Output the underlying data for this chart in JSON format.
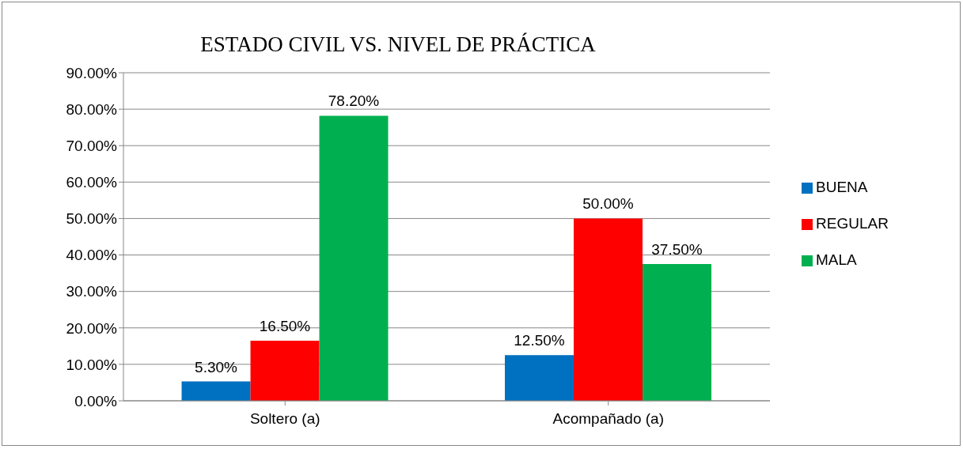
{
  "chart_data": {
    "type": "bar",
    "title": "ESTADO CIVIL VS. NIVEL DE PRÁCTICA",
    "categories": [
      "Soltero (a)",
      "Acompañado (a)"
    ],
    "series": [
      {
        "name": "BUENA",
        "color": "#0070c0",
        "values": [
          5.3,
          12.5
        ],
        "value_labels": [
          "5.30%",
          "12.50%"
        ]
      },
      {
        "name": "REGULAR",
        "color": "#ff0000",
        "values": [
          16.5,
          50
        ],
        "value_labels": [
          "16.50%",
          "50.00%"
        ]
      },
      {
        "name": "MALA",
        "color": "#00b050",
        "values": [
          78.2,
          37.5
        ],
        "value_labels": [
          "78.20%",
          "37.50%"
        ]
      }
    ],
    "ylim": [
      0,
      90
    ],
    "yticks": [
      {
        "value": 0,
        "label": "0.00%"
      },
      {
        "value": 10,
        "label": "10.00%"
      },
      {
        "value": 20,
        "label": "20.00%"
      },
      {
        "value": 30,
        "label": "30.00%"
      },
      {
        "value": 40,
        "label": "40.00%"
      },
      {
        "value": 50,
        "label": "50.00%"
      },
      {
        "value": 60,
        "label": "60.00%"
      },
      {
        "value": 70,
        "label": "70.00%"
      },
      {
        "value": 80,
        "label": "80.00%"
      },
      {
        "value": 90,
        "label": "90.00%"
      }
    ],
    "grid": "y",
    "legend": "right"
  }
}
